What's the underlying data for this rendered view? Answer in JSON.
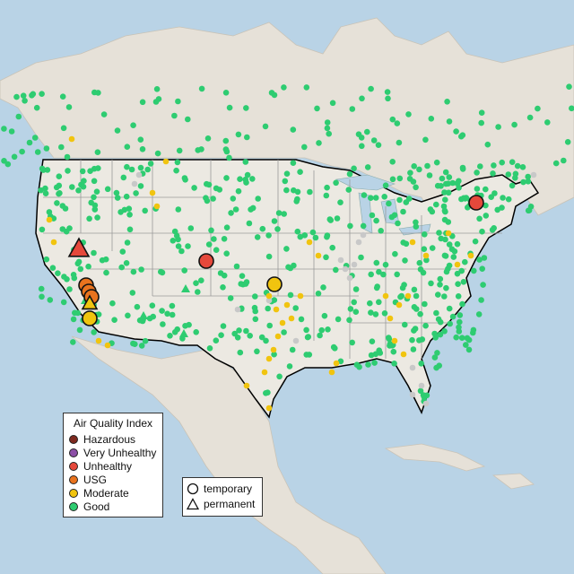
{
  "legend": {
    "title": "Air Quality Index",
    "categories": [
      {
        "label": "Hazardous",
        "color": "#7e2a1f"
      },
      {
        "label": "Very Unhealthy",
        "color": "#8c4fa6"
      },
      {
        "label": "Unhealthy",
        "color": "#e5483b"
      },
      {
        "label": "USG",
        "color": "#e9731e"
      },
      {
        "label": "Moderate",
        "color": "#f1c40f"
      },
      {
        "label": "Good",
        "color": "#2ecc71"
      }
    ]
  },
  "type_legend": {
    "temporary": "temporary",
    "permanent": "permanent",
    "temporary_icon": "circle-icon",
    "permanent_icon": "triangle-icon"
  },
  "colors": {
    "water": "#b9d3e6",
    "land": "#e3ddd2",
    "usa": "#ece9e2",
    "border": "#000000",
    "state_line": "#9a9a9a",
    "inactive": "#c8c8c8"
  }
}
